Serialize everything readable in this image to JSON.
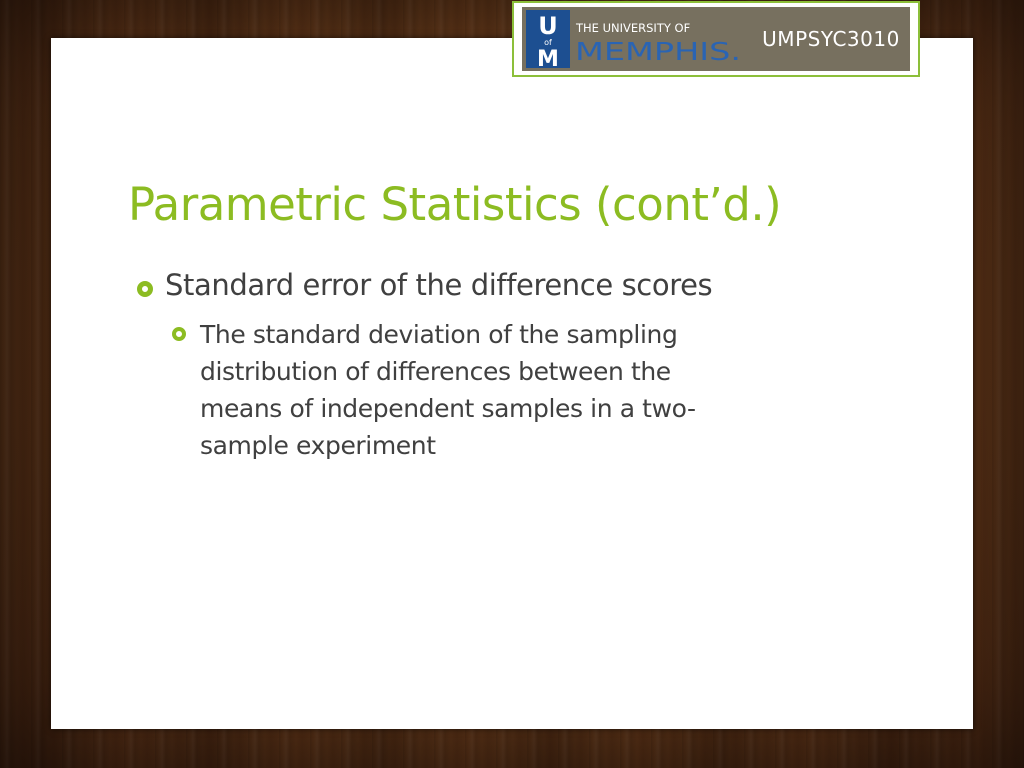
{
  "badge": {
    "logo_letter_u": "U",
    "logo_letter_of": "of",
    "logo_letter_m": "M",
    "logo_line1": "THE UNIVERSITY OF",
    "logo_line2": "MEMPHIS.",
    "course_code": "UMPSYC3010"
  },
  "slide": {
    "title": "Parametric Statistics (cont’d.)",
    "bullets": [
      {
        "text": "Standard error of the difference scores",
        "sub_bullets": [
          {
            "lines": [
              "The standard deviation of the sampling",
              "distribution of differences between the",
              "means of independent samples in a two-",
              "sample experiment"
            ]
          }
        ]
      }
    ]
  },
  "colors": {
    "accent_green": "#8cbc22",
    "body_text": "#404040",
    "badge_bg": "#77705f",
    "logo_blue": "#1d4f91"
  }
}
